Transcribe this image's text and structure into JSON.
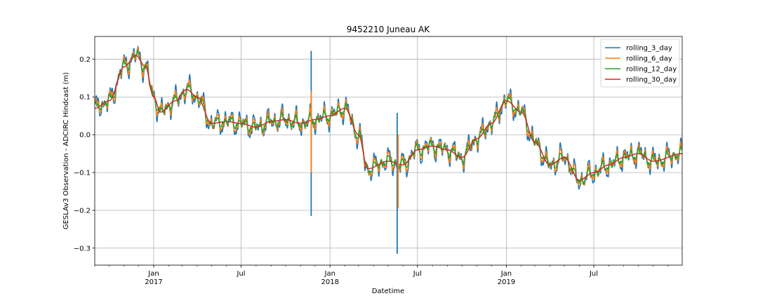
{
  "chart_data": {
    "type": "line",
    "title": "9452210 Juneau AK",
    "xlabel": "Datetime",
    "ylabel": "GESLAv3 Observation - ADCIRC Hindcast (m)",
    "x_range": [
      "2016-09-01",
      "2019-12-31"
    ],
    "ylim": [
      -0.345,
      0.26
    ],
    "y_ticks": [
      -0.3,
      -0.2,
      -0.1,
      0.0,
      0.1,
      0.2
    ],
    "y_tick_labels": [
      "−0.3",
      "−0.2",
      "−0.1",
      "0.0",
      "0.1",
      "0.2"
    ],
    "x_major_ticks": [
      {
        "date": "2017-01-01",
        "label": "Jan",
        "year": "2017"
      },
      {
        "date": "2017-07-01",
        "label": "Jul",
        "year": ""
      },
      {
        "date": "2018-01-01",
        "label": "Jan",
        "year": "2018"
      },
      {
        "date": "2018-07-01",
        "label": "Jul",
        "year": ""
      },
      {
        "date": "2019-01-01",
        "label": "Jan",
        "year": "2019"
      },
      {
        "date": "2019-07-01",
        "label": "Jul",
        "year": ""
      }
    ],
    "grid": true,
    "legend_position": "top-right",
    "trend_keypoints": [
      [
        "2016-09-01",
        0.07
      ],
      [
        "2016-10-01",
        0.09
      ],
      [
        "2016-11-01",
        0.18
      ],
      [
        "2016-11-25",
        0.21
      ],
      [
        "2016-12-15",
        0.18
      ],
      [
        "2017-01-01",
        0.1
      ],
      [
        "2017-01-15",
        0.06
      ],
      [
        "2017-02-15",
        0.09
      ],
      [
        "2017-03-10",
        0.12
      ],
      [
        "2017-04-01",
        0.1
      ],
      [
        "2017-05-01",
        0.03
      ],
      [
        "2017-06-01",
        0.035
      ],
      [
        "2017-07-01",
        0.03
      ],
      [
        "2017-08-01",
        0.02
      ],
      [
        "2017-09-01",
        0.035
      ],
      [
        "2017-10-01",
        0.04
      ],
      [
        "2017-11-01",
        0.03
      ],
      [
        "2017-12-01",
        0.04
      ],
      [
        "2018-01-01",
        0.05
      ],
      [
        "2018-02-01",
        0.07
      ],
      [
        "2018-03-01",
        0.0
      ],
      [
        "2018-03-20",
        -0.09
      ],
      [
        "2018-05-01",
        -0.07
      ],
      [
        "2018-06-01",
        -0.08
      ],
      [
        "2018-07-01",
        -0.04
      ],
      [
        "2018-08-01",
        -0.03
      ],
      [
        "2018-09-01",
        -0.04
      ],
      [
        "2018-10-01",
        -0.06
      ],
      [
        "2018-11-01",
        -0.01
      ],
      [
        "2018-12-01",
        0.03
      ],
      [
        "2019-01-01",
        0.09
      ],
      [
        "2019-02-01",
        0.06
      ],
      [
        "2019-03-01",
        -0.02
      ],
      [
        "2019-04-01",
        -0.08
      ],
      [
        "2019-05-01",
        -0.06
      ],
      [
        "2019-06-01",
        -0.12
      ],
      [
        "2019-07-01",
        -0.1
      ],
      [
        "2019-08-01",
        -0.08
      ],
      [
        "2019-09-01",
        -0.06
      ],
      [
        "2019-10-01",
        -0.05
      ],
      [
        "2019-11-01",
        -0.07
      ],
      [
        "2019-12-31",
        -0.05
      ]
    ],
    "spikes": [
      {
        "series": "rolling_3_day",
        "date": "2017-11-23",
        "min": -0.215,
        "max": 0.222
      },
      {
        "series": "rolling_6_day",
        "date": "2017-11-23",
        "min": -0.1,
        "max": 0.115
      },
      {
        "series": "rolling_3_day",
        "date": "2018-05-20",
        "min": -0.315,
        "max": 0.058
      },
      {
        "series": "rolling_6_day",
        "date": "2018-05-22",
        "min": -0.195,
        "max": 0.0
      }
    ],
    "series": [
      {
        "name": "rolling_3_day",
        "color": "#1f77b4",
        "noise_amplitude": 0.025,
        "smoothing_days": 3
      },
      {
        "name": "rolling_6_day",
        "color": "#ff7f0e",
        "noise_amplitude": 0.018,
        "smoothing_days": 6
      },
      {
        "name": "rolling_12_day",
        "color": "#2ca02c",
        "noise_amplitude": 0.011,
        "smoothing_days": 12
      },
      {
        "name": "rolling_30_day",
        "color": "#d62728",
        "noise_amplitude": 0.0,
        "smoothing_days": 30
      }
    ]
  }
}
